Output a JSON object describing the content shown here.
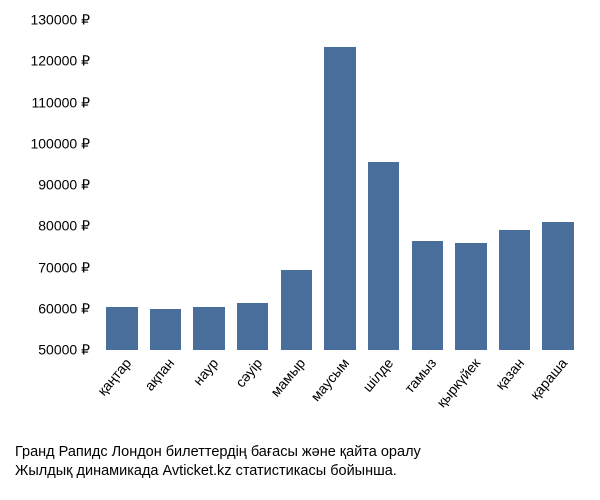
{
  "chart": {
    "type": "bar",
    "categories": [
      "қаңтар",
      "ақпан",
      "наур",
      "сәуір",
      "мамыр",
      "маусым",
      "шілде",
      "тамыз",
      "қыркүйек",
      "қазан",
      "қараша"
    ],
    "values": [
      60500,
      60000,
      60500,
      61500,
      69500,
      123500,
      95500,
      76500,
      76000,
      79000,
      81000
    ],
    "bar_color": "#4a6e9c",
    "background_color": "#ffffff",
    "ylim": [
      50000,
      130000
    ],
    "ytick_step": 10000,
    "yticks": [
      50000,
      60000,
      70000,
      80000,
      90000,
      100000,
      110000,
      120000,
      130000
    ],
    "ytick_labels": [
      "50000 ₽",
      "60000 ₽",
      "70000 ₽",
      "80000 ₽",
      "90000 ₽",
      "100000 ₽",
      "110000 ₽",
      "120000 ₽",
      "130000 ₽"
    ],
    "bar_width_ratio": 0.72,
    "label_fontsize": 14,
    "xlabel_rotation": -50
  },
  "caption": {
    "line1": "Гранд Рапидс Лондон билеттердің бағасы және қайта оралу",
    "line2": "Жылдық динамикада Avticket.kz статистикасы бойынша."
  }
}
